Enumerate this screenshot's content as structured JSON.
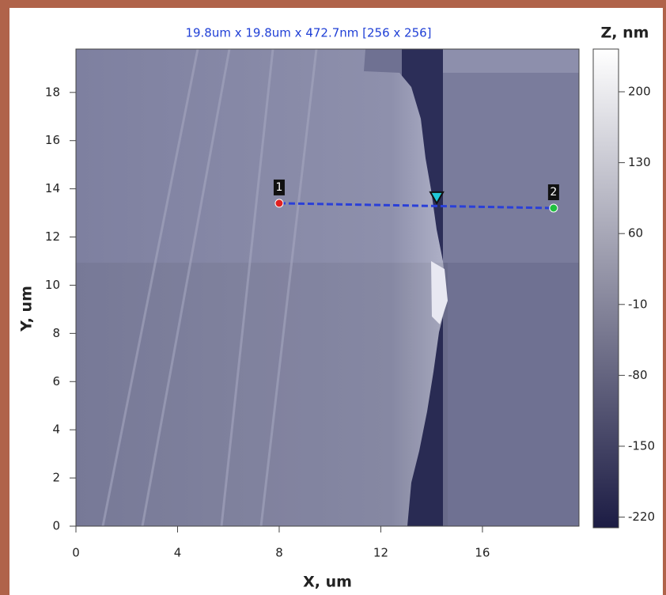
{
  "chart_data": {
    "type": "heatmap",
    "title": "19.8um x 19.8um x 472.7nm [256 x 256]",
    "x_label": "X, um",
    "y_label": "Y, um",
    "colorbar_label": "Z, nm",
    "xlim": [
      0,
      19.8
    ],
    "ylim": [
      0,
      19.8
    ],
    "xticks": [
      0,
      4,
      8,
      12,
      16
    ],
    "yticks": [
      0,
      2,
      4,
      6,
      8,
      10,
      12,
      14,
      16,
      18
    ],
    "zlim": [
      -230.5,
      242.2
    ],
    "zticks": [
      -220,
      -150,
      -80,
      -10,
      60,
      130,
      200
    ],
    "colormap": [
      "#1c1c44",
      "#ffffff"
    ],
    "title_color": "#1f3fd6",
    "profile": {
      "color": "#2a3fd8",
      "points": [
        {
          "label": "1",
          "x": 8.0,
          "y": 13.4,
          "color": "#e02020"
        },
        {
          "label": "2",
          "x": 18.8,
          "y": 13.2,
          "color": "#20c040"
        }
      ],
      "cursor": {
        "x": 14.2,
        "y": 13.4,
        "color": "#20c8d8"
      }
    }
  }
}
